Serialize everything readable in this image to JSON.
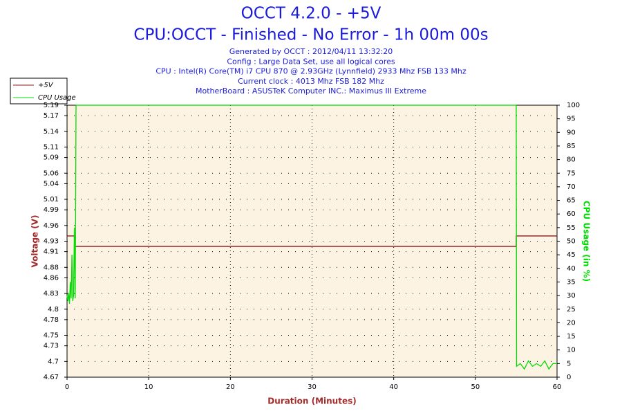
{
  "chart_data": {
    "type": "line",
    "title": "OCCT 4.2.0 - +5V",
    "subtitle": "CPU:OCCT - Finished - No Error - 1h 00m 00s",
    "annotations": [
      "Generated by OCCT : 2012/04/11 13:32:20",
      "Config : Large Data Set, use all logical cores",
      "CPU : Intel(R) Core(TM) i7 CPU 870 @ 2.93GHz (Lynnfield) 2933 Mhz FSB 133 Mhz",
      "Current clock : 4013 Mhz FSB 182 Mhz",
      "MotherBoard : ASUSTeK Computer INC.: Maximus III Extreme"
    ],
    "xlabel": "Duration (Minutes)",
    "ylabel": "Voltage (V)",
    "y2label": "CPU Usage (in %)",
    "xlim": [
      0,
      60
    ],
    "xticks": [
      0,
      10,
      20,
      30,
      40,
      50,
      60
    ],
    "ylim": [
      4.67,
      5.19
    ],
    "yticks": [
      4.67,
      4.7,
      4.73,
      4.75,
      4.78,
      4.8,
      4.83,
      4.86,
      4.88,
      4.91,
      4.93,
      4.96,
      4.99,
      5.01,
      5.04,
      5.06,
      5.09,
      5.11,
      5.14,
      5.17,
      5.19
    ],
    "y2lim": [
      0,
      100
    ],
    "y2ticks": [
      0,
      5,
      10,
      15,
      20,
      25,
      30,
      35,
      40,
      45,
      50,
      55,
      60,
      65,
      70,
      75,
      80,
      85,
      90,
      95,
      100
    ],
    "grid": true,
    "series": [
      {
        "name": "+5V",
        "color": "#8b1a1a",
        "x": [
          0,
          1,
          1,
          55,
          55,
          60
        ],
        "values": [
          4.94,
          4.94,
          4.92,
          4.92,
          4.94,
          4.94
        ]
      },
      {
        "name": "CPU Usage",
        "color": "#00dd00",
        "axis": "y2",
        "x": [
          0,
          0.1,
          0.2,
          0.3,
          0.4,
          0.5,
          0.6,
          0.7,
          0.8,
          0.9,
          1.0,
          1.05,
          1.1,
          55,
          55.05,
          55.5,
          56,
          56.5,
          57,
          57.5,
          58,
          58.5,
          59,
          59.5,
          60
        ],
        "values": [
          30,
          28,
          31,
          27,
          35,
          29,
          45,
          28,
          30,
          55,
          29,
          60,
          100,
          100,
          4,
          5,
          3,
          6,
          4,
          5,
          4,
          6,
          3,
          5,
          5
        ]
      }
    ]
  }
}
